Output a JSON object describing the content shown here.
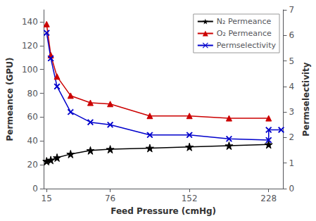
{
  "chart_data": {
    "type": "line",
    "xlabel": "Feed Pressure (cmHg)",
    "ylabel": "Permeance (GPU)",
    "y2label": "Permselectivity",
    "xlim": [
      12,
      242
    ],
    "xticks": [
      15,
      76,
      152,
      228
    ],
    "ylim": [
      0,
      150
    ],
    "yticks": [
      0,
      20,
      40,
      60,
      80,
      100,
      120,
      140
    ],
    "y2lim": [
      0,
      7
    ],
    "y2ticks": [
      0,
      1,
      2,
      3,
      4,
      5,
      6,
      7
    ],
    "grid": false,
    "legend": "upper right",
    "series": [
      {
        "name": "N₂ Permeance",
        "color": "#000000",
        "marker": "star",
        "x": [
          15,
          19,
          25,
          38,
          57,
          76,
          114,
          152,
          190,
          228
        ],
        "values": [
          23,
          24,
          26,
          29,
          32,
          33,
          34,
          35,
          36,
          37
        ]
      },
      {
        "name": "O₂ Permeance",
        "color": "#cc0000",
        "marker": "triangle",
        "x": [
          15,
          19,
          25,
          38,
          57,
          76,
          114,
          152,
          190,
          228
        ],
        "values": [
          138,
          112,
          94,
          78,
          72,
          71,
          61,
          61,
          59,
          59
        ]
      },
      {
        "name": "Permselectivity",
        "color": "#0000cc",
        "marker": "x",
        "axis": "y2",
        "x": [
          15,
          19,
          25,
          38,
          57,
          76,
          114,
          152,
          190,
          228,
          228,
          240
        ],
        "values": [
          6.1,
          5.1,
          4.0,
          3.0,
          2.6,
          2.5,
          2.1,
          2.1,
          1.95,
          1.9,
          2.3,
          2.3
        ]
      }
    ]
  }
}
